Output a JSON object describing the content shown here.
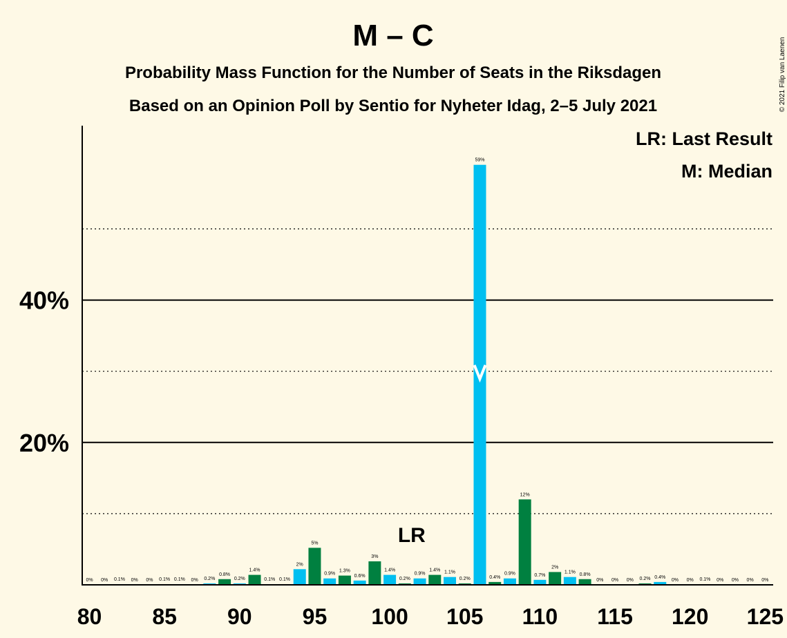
{
  "chart_data": {
    "type": "bar",
    "title": "M – C",
    "subtitle_lines": [
      "Probability Mass Function for the Number of Seats in the Riksdagen",
      "Based on an Opinion Poll by Sentio for Nyheter Idag, 2–5 July 2021"
    ],
    "copyright": "© 2021 Filip van Laenen",
    "legend": {
      "lr": "LR: Last Result",
      "median": "M: Median",
      "placement": "top-right"
    },
    "lr_marker": {
      "seat": 101,
      "label": "LR"
    },
    "median_seat": 106,
    "x_ticks": [
      "80",
      "85",
      "90",
      "95",
      "100",
      "105",
      "110",
      "115",
      "120",
      "125"
    ],
    "y_ticks": [
      {
        "value": 20,
        "label": "20%"
      },
      {
        "value": 40,
        "label": "40%"
      }
    ],
    "y_dotted": [
      10,
      30,
      50
    ],
    "ylim": [
      0,
      64
    ],
    "xlim": [
      80,
      125
    ],
    "colors": {
      "blue": "#00BFF0",
      "green": "#008040",
      "background": "#FEF9E6",
      "axis": "#000000"
    },
    "bars": [
      {
        "seat": 80,
        "value": 0,
        "label": "0%",
        "color": "blue"
      },
      {
        "seat": 81,
        "value": 0,
        "label": "0%",
        "color": "green"
      },
      {
        "seat": 82,
        "value": 0.1,
        "label": "0.1%",
        "color": "blue"
      },
      {
        "seat": 83,
        "value": 0,
        "label": "0%",
        "color": "green"
      },
      {
        "seat": 84,
        "value": 0,
        "label": "0%",
        "color": "blue"
      },
      {
        "seat": 85,
        "value": 0.1,
        "label": "0.1%",
        "color": "green"
      },
      {
        "seat": 86,
        "value": 0.1,
        "label": "0.1%",
        "color": "blue"
      },
      {
        "seat": 87,
        "value": 0,
        "label": "0%",
        "color": "green"
      },
      {
        "seat": 88,
        "value": 0.2,
        "label": "0.2%",
        "color": "blue"
      },
      {
        "seat": 89,
        "value": 0.8,
        "label": "0.8%",
        "color": "green"
      },
      {
        "seat": 90,
        "value": 0.2,
        "label": "0.2%",
        "color": "blue"
      },
      {
        "seat": 91,
        "value": 1.4,
        "label": "1.4%",
        "color": "green"
      },
      {
        "seat": 92,
        "value": 0.1,
        "label": "0.1%",
        "color": "blue"
      },
      {
        "seat": 93,
        "value": 0.1,
        "label": "0.1%",
        "color": "green"
      },
      {
        "seat": 94,
        "value": 2.2,
        "label": "2%",
        "color": "blue"
      },
      {
        "seat": 95,
        "value": 5.2,
        "label": "5%",
        "color": "green"
      },
      {
        "seat": 96,
        "value": 0.9,
        "label": "0.9%",
        "color": "blue"
      },
      {
        "seat": 97,
        "value": 1.3,
        "label": "1.3%",
        "color": "green"
      },
      {
        "seat": 98,
        "value": 0.6,
        "label": "0.6%",
        "color": "blue"
      },
      {
        "seat": 99,
        "value": 3.3,
        "label": "3%",
        "color": "green"
      },
      {
        "seat": 100,
        "value": 1.4,
        "label": "1.4%",
        "color": "blue"
      },
      {
        "seat": 101,
        "value": 0.2,
        "label": "0.2%",
        "color": "green"
      },
      {
        "seat": 102,
        "value": 0.9,
        "label": "0.9%",
        "color": "blue"
      },
      {
        "seat": 103,
        "value": 1.4,
        "label": "1.4%",
        "color": "green"
      },
      {
        "seat": 104,
        "value": 1.1,
        "label": "1.1%",
        "color": "blue"
      },
      {
        "seat": 105,
        "value": 0.2,
        "label": "0.2%",
        "color": "green"
      },
      {
        "seat": 106,
        "value": 59,
        "label": "59%",
        "color": "blue"
      },
      {
        "seat": 107,
        "value": 0.4,
        "label": "0.4%",
        "color": "green"
      },
      {
        "seat": 108,
        "value": 0.9,
        "label": "0.9%",
        "color": "blue"
      },
      {
        "seat": 109,
        "value": 12,
        "label": "12%",
        "color": "green"
      },
      {
        "seat": 110,
        "value": 0.7,
        "label": "0.7%",
        "color": "blue"
      },
      {
        "seat": 111,
        "value": 1.8,
        "label": "2%",
        "color": "green"
      },
      {
        "seat": 112,
        "value": 1.1,
        "label": "1.1%",
        "color": "blue"
      },
      {
        "seat": 113,
        "value": 0.8,
        "label": "0.8%",
        "color": "green"
      },
      {
        "seat": 114,
        "value": 0,
        "label": "0%",
        "color": "blue"
      },
      {
        "seat": 115,
        "value": 0,
        "label": "0%",
        "color": "green"
      },
      {
        "seat": 116,
        "value": 0,
        "label": "0%",
        "color": "blue"
      },
      {
        "seat": 117,
        "value": 0.2,
        "label": "0.2%",
        "color": "green"
      },
      {
        "seat": 118,
        "value": 0.4,
        "label": "0.4%",
        "color": "blue"
      },
      {
        "seat": 119,
        "value": 0,
        "label": "0%",
        "color": "green"
      },
      {
        "seat": 120,
        "value": 0,
        "label": "0%",
        "color": "blue"
      },
      {
        "seat": 121,
        "value": 0.1,
        "label": "0.1%",
        "color": "green"
      },
      {
        "seat": 122,
        "value": 0,
        "label": "0%",
        "color": "blue"
      },
      {
        "seat": 123,
        "value": 0,
        "label": "0%",
        "color": "green"
      },
      {
        "seat": 124,
        "value": 0,
        "label": "0%",
        "color": "blue"
      },
      {
        "seat": 125,
        "value": 0,
        "label": "0%",
        "color": "green"
      }
    ]
  }
}
